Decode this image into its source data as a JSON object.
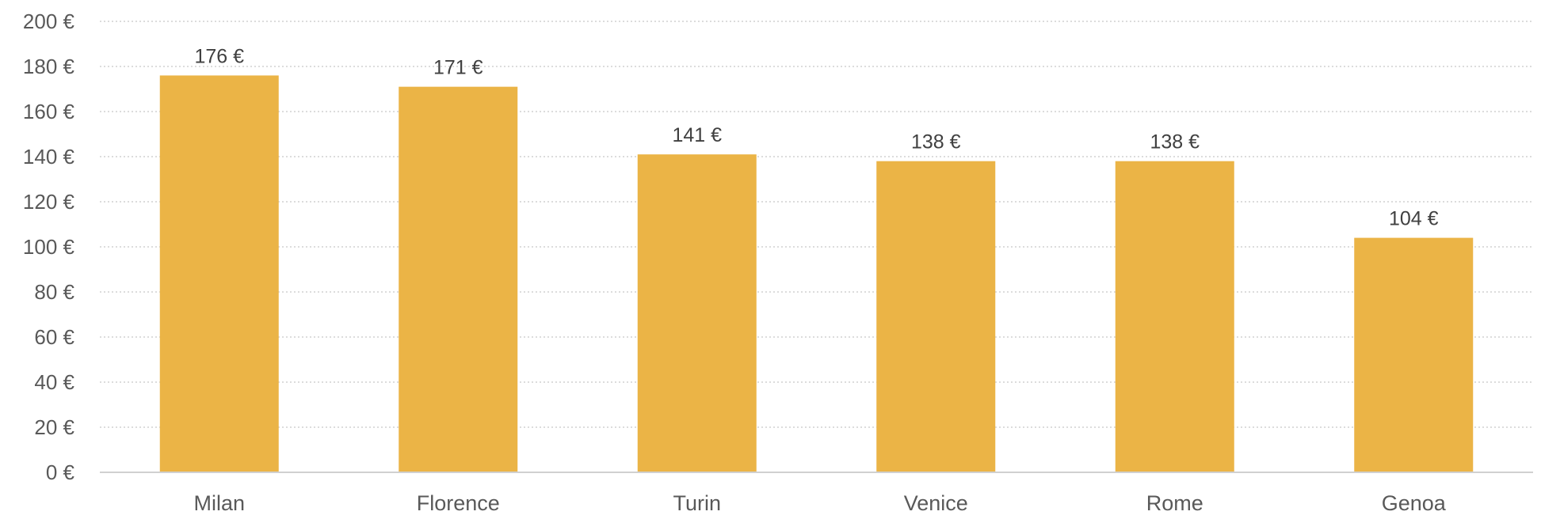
{
  "chart_data": {
    "type": "bar",
    "title": "",
    "xlabel": "",
    "ylabel": "",
    "categories": [
      "Milan",
      "Florence",
      "Turin",
      "Venice",
      "Rome",
      "Genoa"
    ],
    "values": [
      176,
      171,
      141,
      138,
      138,
      104
    ],
    "data_labels": [
      "176 €",
      "171 €",
      "141 €",
      "138 €",
      "138 €",
      "104 €"
    ],
    "ylim": [
      0,
      200
    ],
    "y_ticks": [
      0,
      20,
      40,
      60,
      80,
      100,
      120,
      140,
      160,
      180,
      200
    ],
    "y_tick_labels": [
      "0 €",
      "20 €",
      "40 €",
      "60 €",
      "80 €",
      "100 €",
      "120 €",
      "140 €",
      "160 €",
      "180 €",
      "200 €"
    ],
    "grid": "horizontal dotted",
    "legend": "none",
    "bar_color": "#EBB446",
    "grid_color": "#C8C8C8",
    "text_color": "#595959"
  }
}
